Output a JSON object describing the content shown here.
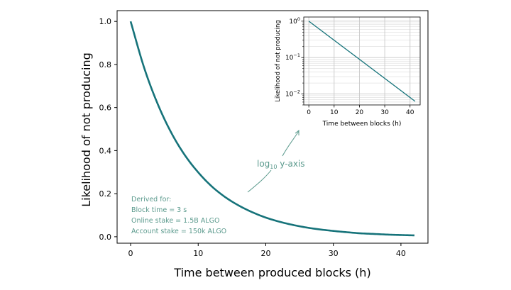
{
  "colors": {
    "line": "#16737a",
    "annotation": "#5b9a8d",
    "axis": "#000000",
    "grid": "#c8c8c8"
  },
  "chart_data": [
    {
      "type": "line",
      "xlabel": "Time between produced blocks (h)",
      "ylabel": "Likelihood of not producing",
      "xlim": [
        -2,
        44
      ],
      "ylim": [
        -0.03,
        1.05
      ],
      "xticks": [
        "0",
        "10",
        "20",
        "30",
        "40"
      ],
      "yticks": [
        "0.0",
        "0.2",
        "0.4",
        "0.6",
        "0.8",
        "1.0"
      ],
      "grid": false,
      "series": [
        {
          "x": [
            0,
            2,
            4,
            6,
            8,
            10,
            12,
            14,
            16,
            18,
            20,
            22,
            24,
            26,
            28,
            30,
            32,
            34,
            36,
            38,
            40,
            42
          ],
          "values": [
            1.0,
            0.785,
            0.617,
            0.484,
            0.38,
            0.299,
            0.234,
            0.184,
            0.145,
            0.114,
            0.089,
            0.07,
            0.055,
            0.043,
            0.034,
            0.027,
            0.021,
            0.016,
            0.013,
            0.01,
            0.008,
            0.0063
          ]
        }
      ],
      "annotations": {
        "note_lines": [
          "Derived for:",
          "Block time = 3 s",
          "Online stake = 1.5B ALGO",
          "Account stake = 150k ALGO"
        ],
        "arrow_label_base": "log",
        "arrow_label_sub": "10",
        "arrow_label_rest": " y-axis"
      }
    },
    {
      "type": "line",
      "xlabel": "Time between blocks (h)",
      "ylabel": "Likelihood of not producing",
      "xlim": [
        -2,
        44
      ],
      "yscale": "log",
      "ylim": [
        0.005,
        1.3
      ],
      "xticks": [
        "0",
        "10",
        "20",
        "30",
        "40"
      ],
      "yticks": [
        {
          "base": "10",
          "exp": "0"
        },
        {
          "base": "10",
          "exp": "−1"
        },
        {
          "base": "10",
          "exp": "−2"
        }
      ],
      "grid": true,
      "series": [
        {
          "x": [
            0,
            42
          ],
          "values": [
            1.0,
            0.0063
          ]
        }
      ]
    }
  ]
}
